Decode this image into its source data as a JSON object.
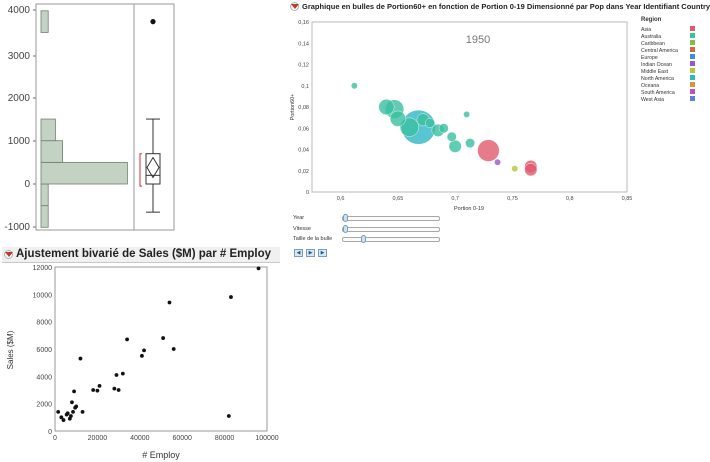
{
  "distribution": {
    "y_ticks": [
      "4000",
      "3000",
      "2000",
      "1000",
      "0",
      "-1000"
    ],
    "histogram_bins": [
      {
        "from": -1000,
        "to": -500,
        "count": 1
      },
      {
        "from": -500,
        "to": 0,
        "count": 1
      },
      {
        "from": 0,
        "to": 500,
        "count": 12
      },
      {
        "from": 500,
        "to": 1000,
        "count": 3
      },
      {
        "from": 1000,
        "to": 1500,
        "count": 2
      },
      {
        "from": 1500,
        "to": 3500,
        "count": 0
      },
      {
        "from": 3500,
        "to": 4000,
        "count": 1
      }
    ],
    "boxplot": {
      "min": -650,
      "q1": 0,
      "median": 200,
      "mean": 380,
      "q3": 700,
      "max": 1500,
      "outlier": 3750
    }
  },
  "bubble": {
    "title": "Graphique en bulles de Portion60+ en fonction de Portion 0-19 Dimensionné par Pop dans Year Identifiant Country",
    "year_label": "1950",
    "x_axis_label": "Portion 0-19",
    "y_axis_label": "Portion60+",
    "x_ticks": [
      "0,6",
      "0,65",
      "0,7",
      "0,75",
      "0,8",
      "0,85"
    ],
    "y_ticks": [
      "0",
      "0,02",
      "0,04",
      "0,06",
      "0,08",
      "0,1",
      "0,12",
      "0,14",
      "0,16"
    ],
    "legend": {
      "title": "Region",
      "items": [
        {
          "label": "Asia",
          "color": "#e05a6e"
        },
        {
          "label": "Australia",
          "color": "#3bbfa0"
        },
        {
          "label": "Caribbean",
          "color": "#7fbf3f"
        },
        {
          "label": "Central America",
          "color": "#d36a3c"
        },
        {
          "label": "Europe",
          "color": "#3a8fd6"
        },
        {
          "label": "Indian Ocean",
          "color": "#9a56c8"
        },
        {
          "label": "Middle East",
          "color": "#b7c43a"
        },
        {
          "label": "North America",
          "color": "#2fb6c6"
        },
        {
          "label": "Oceana",
          "color": "#d8962e"
        },
        {
          "label": "South America",
          "color": "#c84fb1"
        },
        {
          "label": "West Asia",
          "color": "#5d7fd8"
        }
      ]
    },
    "chart_data": {
      "type": "scatter",
      "title": "1950",
      "xlabel": "Portion 0-19",
      "ylabel": "Portion60+",
      "xlim": [
        0.575,
        0.85
      ],
      "ylim": [
        0,
        0.16
      ],
      "points": [
        {
          "x": 0.612,
          "y": 0.1,
          "size": 1,
          "region": "Australia"
        },
        {
          "x": 0.64,
          "y": 0.08,
          "size": 4,
          "region": "Australia"
        },
        {
          "x": 0.647,
          "y": 0.078,
          "size": 5,
          "region": "Australia"
        },
        {
          "x": 0.65,
          "y": 0.069,
          "size": 4,
          "region": "Australia"
        },
        {
          "x": 0.66,
          "y": 0.061,
          "size": 5,
          "region": "Australia"
        },
        {
          "x": 0.668,
          "y": 0.061,
          "size": 10,
          "region": "North America"
        },
        {
          "x": 0.672,
          "y": 0.068,
          "size": 3,
          "region": "Australia"
        },
        {
          "x": 0.678,
          "y": 0.065,
          "size": 2,
          "region": "Australia"
        },
        {
          "x": 0.685,
          "y": 0.058,
          "size": 3,
          "region": "Australia"
        },
        {
          "x": 0.69,
          "y": 0.06,
          "size": 2,
          "region": "Australia"
        },
        {
          "x": 0.697,
          "y": 0.052,
          "size": 2,
          "region": "Australia"
        },
        {
          "x": 0.71,
          "y": 0.073,
          "size": 1,
          "region": "Australia"
        },
        {
          "x": 0.713,
          "y": 0.046,
          "size": 2,
          "region": "Australia"
        },
        {
          "x": 0.7,
          "y": 0.043,
          "size": 3,
          "region": "Australia"
        },
        {
          "x": 0.729,
          "y": 0.039,
          "size": 6,
          "region": "Asia"
        },
        {
          "x": 0.737,
          "y": 0.028,
          "size": 1,
          "region": "Indian Ocean"
        },
        {
          "x": 0.752,
          "y": 0.022,
          "size": 1,
          "region": "Middle East"
        },
        {
          "x": 0.766,
          "y": 0.024,
          "size": 3,
          "region": "Asia"
        },
        {
          "x": 0.766,
          "y": 0.021,
          "size": 3,
          "region": "Asia"
        }
      ]
    },
    "sliders": [
      {
        "label": "Year",
        "value": 0.0
      },
      {
        "label": "Vitesse",
        "value": 0.0
      },
      {
        "label": "Taille de la bulle",
        "value": 0.2
      }
    ],
    "player_buttons": [
      "step-back",
      "play",
      "step-forward"
    ]
  },
  "bivariate": {
    "title": "Ajustement bivarié de Sales ($M) par # Employ",
    "chart_data": {
      "type": "scatter",
      "title": "",
      "xlabel": "# Employ",
      "ylabel": "Sales ($M)",
      "xlim": [
        0,
        100000
      ],
      "ylim": [
        0,
        12000
      ],
      "x_ticks": [
        "0",
        "20000",
        "40000",
        "60000",
        "80000",
        "100000"
      ],
      "y_ticks": [
        "0",
        "2000",
        "4000",
        "6000",
        "8000",
        "10000",
        "12000"
      ],
      "points": [
        [
          1500,
          1400
        ],
        [
          3000,
          1000
        ],
        [
          4000,
          800
        ],
        [
          5500,
          1200
        ],
        [
          6000,
          1300
        ],
        [
          7000,
          900
        ],
        [
          7500,
          1100
        ],
        [
          8000,
          2100
        ],
        [
          8500,
          1400
        ],
        [
          9000,
          2900
        ],
        [
          9500,
          1700
        ],
        [
          10000,
          1800
        ],
        [
          12000,
          5300
        ],
        [
          13000,
          1400
        ],
        [
          18000,
          3000
        ],
        [
          20000,
          2950
        ],
        [
          21000,
          3300
        ],
        [
          28000,
          3100
        ],
        [
          29000,
          4100
        ],
        [
          30000,
          3000
        ],
        [
          32000,
          4200
        ],
        [
          34000,
          6700
        ],
        [
          41000,
          5500
        ],
        [
          42000,
          5900
        ],
        [
          51000,
          6800
        ],
        [
          54000,
          9400
        ],
        [
          56000,
          6000
        ],
        [
          82000,
          1100
        ],
        [
          83000,
          9800
        ],
        [
          96000,
          11900
        ]
      ]
    }
  }
}
